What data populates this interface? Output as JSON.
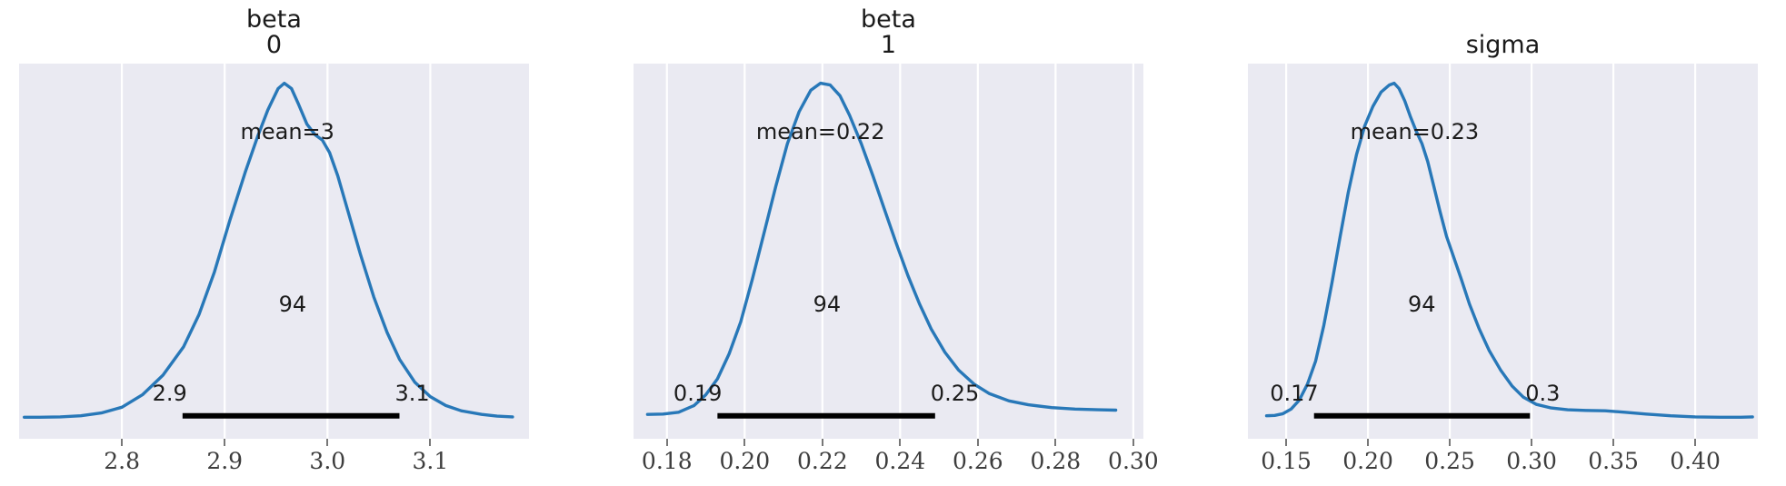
{
  "figure": {
    "kind": "arviz-posterior-kde",
    "background": "#ffffff",
    "panel_background": "#eaeaf2",
    "gridline_color": "#ffffff",
    "curve_color": "#2878b8",
    "hdi_bar_color": "#000000",
    "annotation_color": "#1c1c1c",
    "tick_label_color": "#3d3d3d"
  },
  "chart_data": {
    "type": "area",
    "subtype": "posterior-kde-panels",
    "legend": "none",
    "grid": "vertical-white-gridlines",
    "plots": [
      {
        "title": "beta\n0",
        "mean": 3,
        "mean_label": "mean=3",
        "mean_label_x": 2.961,
        "hdi_pct_label": "94",
        "hdi_pct_label_x": 2.966,
        "hdi_lower": 2.859,
        "hdi_upper": 3.07,
        "hdi_lower_label": "2.9",
        "hdi_upper_label": "3.1",
        "xlim": [
          2.7,
          3.196
        ],
        "xticks": [
          2.8,
          2.9,
          3.0,
          3.1
        ],
        "xtick_labels": [
          "2.8",
          "2.9",
          "3.0",
          "3.1"
        ],
        "curve": [
          [
            2.705,
            0.012
          ],
          [
            2.72,
            0.012
          ],
          [
            2.74,
            0.013
          ],
          [
            2.76,
            0.016
          ],
          [
            2.78,
            0.024
          ],
          [
            2.8,
            0.04
          ],
          [
            2.82,
            0.075
          ],
          [
            2.84,
            0.13
          ],
          [
            2.86,
            0.21
          ],
          [
            2.875,
            0.3
          ],
          [
            2.89,
            0.42
          ],
          [
            2.905,
            0.565
          ],
          [
            2.92,
            0.7
          ],
          [
            2.932,
            0.8
          ],
          [
            2.942,
            0.875
          ],
          [
            2.952,
            0.935
          ],
          [
            2.958,
            0.95
          ],
          [
            2.965,
            0.935
          ],
          [
            2.972,
            0.89
          ],
          [
            2.98,
            0.835
          ],
          [
            2.988,
            0.805
          ],
          [
            2.995,
            0.79
          ],
          [
            3.002,
            0.755
          ],
          [
            3.01,
            0.69
          ],
          [
            3.02,
            0.59
          ],
          [
            3.032,
            0.47
          ],
          [
            3.045,
            0.35
          ],
          [
            3.058,
            0.25
          ],
          [
            3.07,
            0.175
          ],
          [
            3.085,
            0.11
          ],
          [
            3.1,
            0.07
          ],
          [
            3.115,
            0.045
          ],
          [
            3.13,
            0.03
          ],
          [
            3.15,
            0.02
          ],
          [
            3.165,
            0.015
          ],
          [
            3.18,
            0.013
          ]
        ]
      },
      {
        "title": "beta\n1",
        "mean": 0.22,
        "mean_label": "mean=0.22",
        "mean_label_x": 0.2195,
        "hdi_pct_label": "94",
        "hdi_pct_label_x": 0.2212,
        "hdi_lower": 0.193,
        "hdi_upper": 0.249,
        "hdi_lower_label": "0.19",
        "hdi_upper_label": "0.25",
        "xlim": [
          0.1714,
          0.3026
        ],
        "xticks": [
          0.18,
          0.2,
          0.22,
          0.24,
          0.26,
          0.28,
          0.3
        ],
        "xtick_labels": [
          "0.18",
          "0.20",
          "0.22",
          "0.24",
          "0.26",
          "0.28",
          "0.30"
        ],
        "curve": [
          [
            0.175,
            0.02
          ],
          [
            0.179,
            0.021
          ],
          [
            0.183,
            0.026
          ],
          [
            0.187,
            0.045
          ],
          [
            0.19,
            0.075
          ],
          [
            0.193,
            0.12
          ],
          [
            0.196,
            0.19
          ],
          [
            0.199,
            0.28
          ],
          [
            0.202,
            0.4
          ],
          [
            0.205,
            0.53
          ],
          [
            0.208,
            0.66
          ],
          [
            0.211,
            0.78
          ],
          [
            0.214,
            0.87
          ],
          [
            0.217,
            0.93
          ],
          [
            0.2195,
            0.95
          ],
          [
            0.222,
            0.945
          ],
          [
            0.2245,
            0.915
          ],
          [
            0.227,
            0.86
          ],
          [
            0.23,
            0.78
          ],
          [
            0.233,
            0.69
          ],
          [
            0.236,
            0.595
          ],
          [
            0.239,
            0.5
          ],
          [
            0.242,
            0.41
          ],
          [
            0.245,
            0.33
          ],
          [
            0.248,
            0.26
          ],
          [
            0.2515,
            0.195
          ],
          [
            0.255,
            0.145
          ],
          [
            0.259,
            0.105
          ],
          [
            0.263,
            0.078
          ],
          [
            0.268,
            0.058
          ],
          [
            0.273,
            0.047
          ],
          [
            0.279,
            0.039
          ],
          [
            0.285,
            0.035
          ],
          [
            0.291,
            0.033
          ],
          [
            0.2955,
            0.032
          ]
        ]
      },
      {
        "title": "sigma",
        "mean": 0.23,
        "mean_label": "mean=0.23",
        "mean_label_x": 0.2285,
        "hdi_pct_label": "94",
        "hdi_pct_label_x": 0.2329,
        "hdi_lower": 0.167,
        "hdi_upper": 0.299,
        "hdi_lower_label": "0.17",
        "hdi_upper_label": "0.3",
        "xlim": [
          0.1266,
          0.4383
        ],
        "xticks": [
          0.15,
          0.2,
          0.25,
          0.3,
          0.35,
          0.4
        ],
        "xtick_labels": [
          "0.15",
          "0.20",
          "0.25",
          "0.30",
          "0.35",
          "0.40"
        ],
        "curve": [
          [
            0.138,
            0.016
          ],
          [
            0.143,
            0.017
          ],
          [
            0.148,
            0.022
          ],
          [
            0.153,
            0.035
          ],
          [
            0.158,
            0.06
          ],
          [
            0.163,
            0.105
          ],
          [
            0.168,
            0.17
          ],
          [
            0.173,
            0.27
          ],
          [
            0.178,
            0.39
          ],
          [
            0.183,
            0.52
          ],
          [
            0.188,
            0.645
          ],
          [
            0.193,
            0.75
          ],
          [
            0.198,
            0.83
          ],
          [
            0.203,
            0.885
          ],
          [
            0.208,
            0.925
          ],
          [
            0.213,
            0.945
          ],
          [
            0.216,
            0.95
          ],
          [
            0.219,
            0.935
          ],
          [
            0.2225,
            0.9
          ],
          [
            0.226,
            0.855
          ],
          [
            0.2295,
            0.815
          ],
          [
            0.233,
            0.78
          ],
          [
            0.2365,
            0.73
          ],
          [
            0.24,
            0.665
          ],
          [
            0.244,
            0.59
          ],
          [
            0.248,
            0.52
          ],
          [
            0.2525,
            0.46
          ],
          [
            0.257,
            0.4
          ],
          [
            0.262,
            0.33
          ],
          [
            0.268,
            0.26
          ],
          [
            0.274,
            0.2
          ],
          [
            0.281,
            0.145
          ],
          [
            0.288,
            0.1
          ],
          [
            0.295,
            0.068
          ],
          [
            0.303,
            0.048
          ],
          [
            0.312,
            0.038
          ],
          [
            0.322,
            0.033
          ],
          [
            0.333,
            0.031
          ],
          [
            0.345,
            0.03
          ],
          [
            0.357,
            0.026
          ],
          [
            0.37,
            0.021
          ],
          [
            0.385,
            0.016
          ],
          [
            0.4,
            0.013
          ],
          [
            0.415,
            0.012
          ],
          [
            0.428,
            0.012
          ],
          [
            0.435,
            0.013
          ]
        ]
      }
    ]
  }
}
